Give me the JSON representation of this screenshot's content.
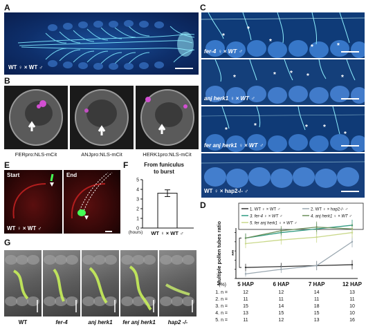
{
  "panel_labels": [
    "A",
    "B",
    "C",
    "D",
    "E",
    "F",
    "G"
  ],
  "panelA": {
    "caption": "WT ♀ × WT ♂"
  },
  "panelB": {
    "captions": [
      "FERpro:NLS-mCit",
      "ANJpro:NLS-mCit",
      "HERK1pro:NLS-mCit"
    ]
  },
  "panelC": {
    "captions": [
      "fer-4 ♀ × WT ♂",
      "anj herk1 ♀ × WT ♂",
      "fer anj herk1 ♀ × WT ♂",
      "WT ♀ × hap2-/- ♂"
    ],
    "star": "*"
  },
  "panelE": {
    "start": "Start",
    "end": "End",
    "caption": "WT ♀ × WT ♂"
  },
  "panelF": {
    "title_line1": "From funiculus",
    "title_line2": "to burst",
    "ylabel": "(hours)",
    "xlabel": "WT ♀ × WT ♂",
    "yticks": [
      "0",
      "1",
      "2",
      "3",
      "4",
      "5"
    ]
  },
  "panelG": {
    "captions": [
      "WT",
      "fer-4",
      "anj herk1",
      "fer anj herk1",
      "hap2 -/-"
    ]
  },
  "chart_data": [
    {
      "type": "bar",
      "panel": "F",
      "title": "From funiculus to burst",
      "ylabel": "(hours)",
      "categories": [
        "WT ♀ × WT ♂"
      ],
      "values": [
        3.6
      ],
      "error": [
        0.35
      ],
      "ylim": [
        0,
        5
      ],
      "colors": {
        "bar": "#ffffff",
        "edge": "#111111"
      }
    },
    {
      "type": "line",
      "panel": "D",
      "ylabel": "Multiple pollen tubes ratio",
      "xlabel": "(%)",
      "categories": [
        "5 HAP",
        "6 HAP",
        "7 HAP",
        "12 HAP"
      ],
      "ylim": [
        0,
        70
      ],
      "yticks": [
        "0",
        "10",
        "20",
        "30",
        "40",
        "50",
        "60",
        "70"
      ],
      "significance": "***",
      "series": [
        {
          "name": "1. WT ♀ × WT ♂",
          "color": "#333333",
          "values": [
            12,
            13,
            14,
            15
          ],
          "error": [
            4,
            4,
            5,
            5
          ]
        },
        {
          "name": "2. WT ♀ × hap2-/- ♂",
          "color": "#9aa7b0",
          "values": [
            5,
            10,
            14,
            40
          ],
          "error": [
            3,
            4,
            5,
            6
          ]
        },
        {
          "name": "3. fer-4 ♀ × WT ♂",
          "color": "#2e9a80",
          "values": [
            44,
            50,
            54,
            58
          ],
          "error": [
            5,
            5,
            6,
            6
          ]
        },
        {
          "name": "4. anj herk1 ♀ × WT ♂",
          "color": "#6a8f5a",
          "values": [
            44,
            52,
            56,
            54
          ],
          "error": [
            5,
            5,
            6,
            6
          ]
        },
        {
          "name": "5. fer anj herk1 ♀ × WT ♂",
          "color": "#c9d88a",
          "values": [
            38,
            42,
            45,
            50
          ],
          "error": [
            5,
            5,
            6,
            6
          ]
        }
      ],
      "n_table": {
        "rows": [
          {
            "label": "1. n =",
            "values": [
              "12",
              "12",
              "14",
              "13"
            ]
          },
          {
            "label": "2. n =",
            "values": [
              "11",
              "11",
              "11",
              "11"
            ]
          },
          {
            "label": "3. n =",
            "values": [
              "15",
              "14",
              "18",
              "10"
            ]
          },
          {
            "label": "4. n =",
            "values": [
              "13",
              "15",
              "15",
              "10"
            ]
          },
          {
            "label": "5. n =",
            "values": [
              "11",
              "12",
              "13",
              "16"
            ]
          }
        ]
      }
    }
  ]
}
